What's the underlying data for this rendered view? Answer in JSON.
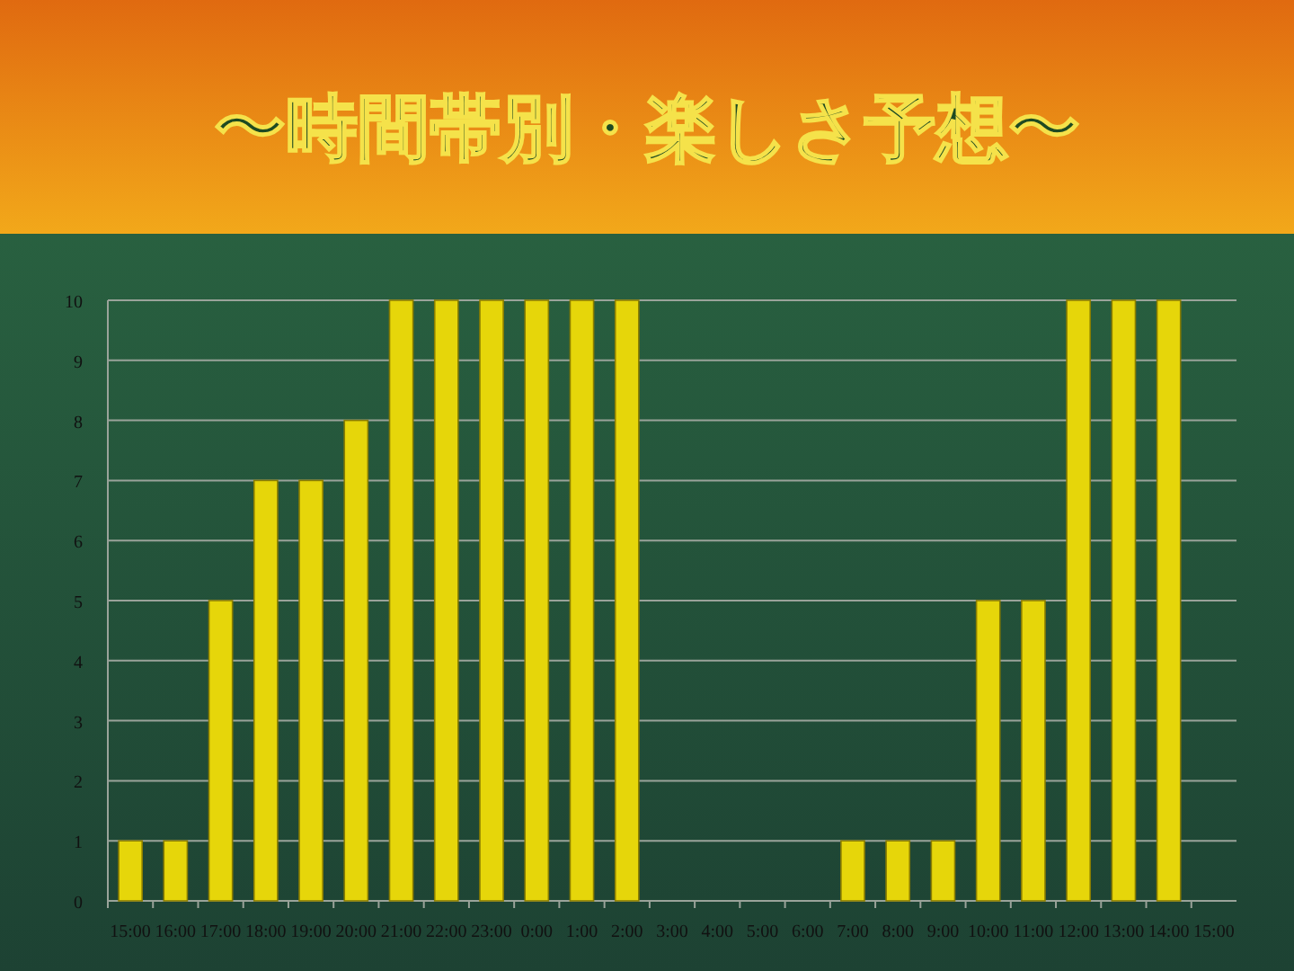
{
  "chart_data": {
    "type": "bar",
    "title": "〜時間帯別・楽しさ予想〜",
    "categories": [
      "15:00",
      "16:00",
      "17:00",
      "18:00",
      "19:00",
      "20:00",
      "21:00",
      "22:00",
      "23:00",
      "0:00",
      "1:00",
      "2:00",
      "3:00",
      "4:00",
      "5:00",
      "6:00",
      "7:00",
      "8:00",
      "9:00",
      "10:00",
      "11:00",
      "12:00",
      "13:00",
      "14:00",
      "15:00"
    ],
    "values": [
      1,
      1,
      5,
      7,
      7,
      8,
      10,
      10,
      10,
      10,
      10,
      10,
      0,
      0,
      0,
      0,
      1,
      1,
      1,
      5,
      5,
      10,
      10,
      10,
      0
    ],
    "color": "#e6d60a",
    "ylim": [
      0,
      10
    ],
    "yticks": [
      0,
      1,
      2,
      3,
      4,
      5,
      6,
      7,
      8,
      9,
      10
    ],
    "grid": "y"
  }
}
